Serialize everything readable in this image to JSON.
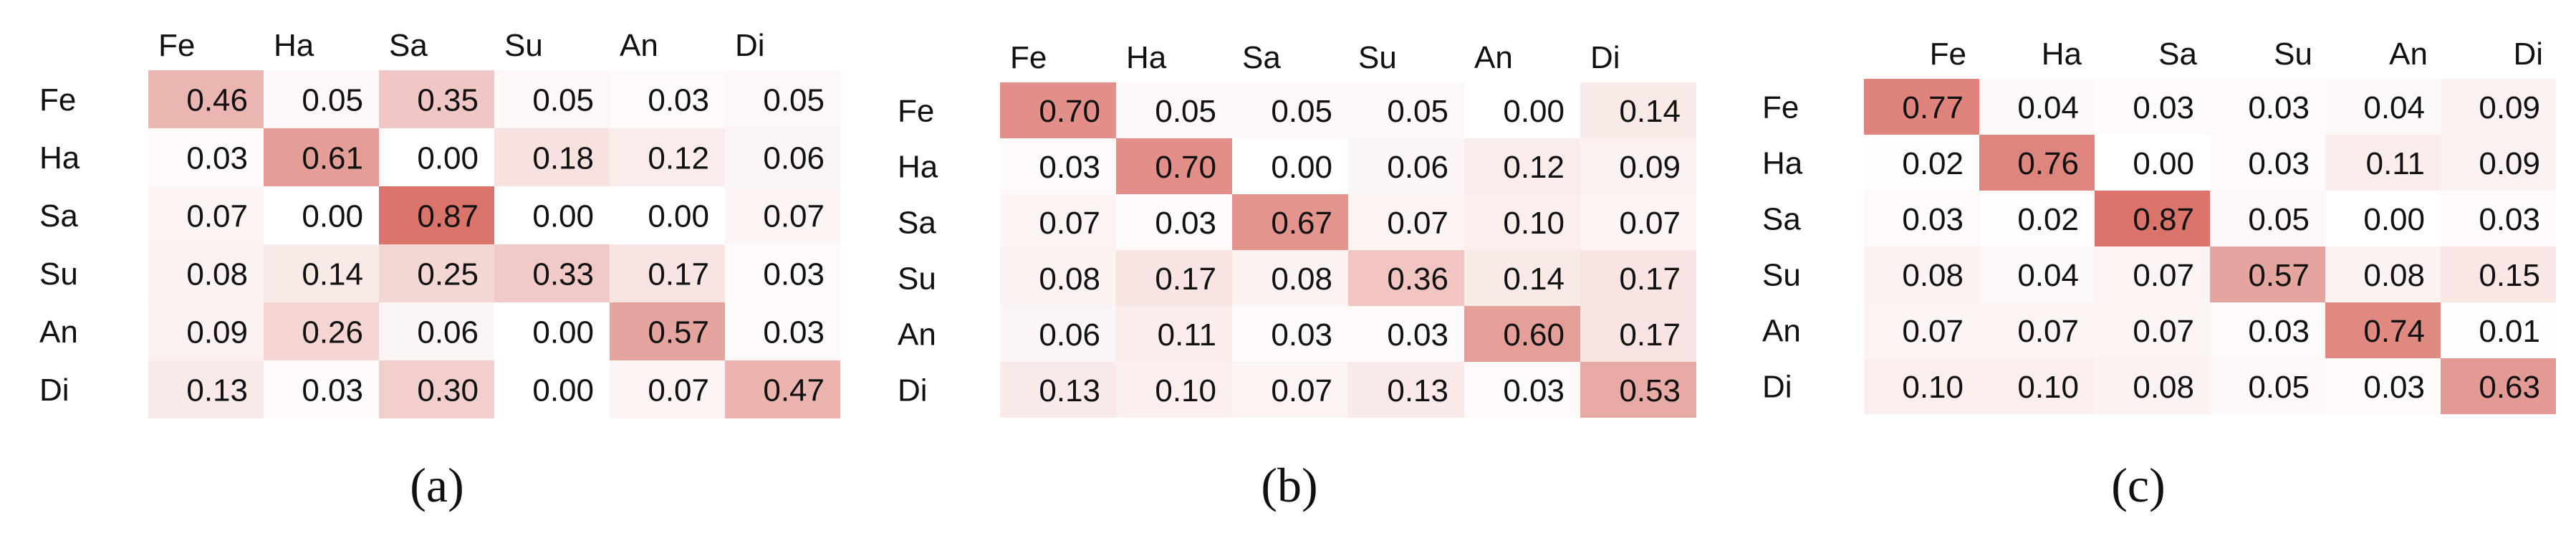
{
  "figure": {
    "panel_labels": [
      "(a)",
      "(b)",
      "(c)"
    ]
  },
  "colors": {
    "low": "#ffffff",
    "high": "#d45f55",
    "text": "#111111"
  },
  "chart_data": [
    {
      "type": "heatmap",
      "panel": "(a)",
      "x_categories": [
        "Fe",
        "Ha",
        "Sa",
        "Su",
        "An",
        "Di"
      ],
      "y_categories": [
        "Fe",
        "Ha",
        "Sa",
        "Su",
        "An",
        "Di"
      ],
      "values": [
        [
          0.46,
          0.05,
          0.35,
          0.05,
          0.03,
          0.05
        ],
        [
          0.03,
          0.61,
          0.0,
          0.18,
          0.12,
          0.06
        ],
        [
          0.07,
          0.0,
          0.87,
          0.0,
          0.0,
          0.07
        ],
        [
          0.08,
          0.14,
          0.25,
          0.33,
          0.17,
          0.03
        ],
        [
          0.09,
          0.26,
          0.06,
          0.0,
          0.57,
          0.03
        ],
        [
          0.13,
          0.03,
          0.3,
          0.0,
          0.07,
          0.47
        ]
      ],
      "value_labels": [
        [
          "0.46",
          "0.05",
          "0.35",
          "0.05",
          "0.03",
          "0.05"
        ],
        [
          "0.03",
          "0.61",
          "0.00",
          "0.18",
          "0.12",
          "0.06"
        ],
        [
          "0.07",
          "0.00",
          "0.87",
          "0.00",
          "0.00",
          "0.07"
        ],
        [
          "0.08",
          "0.14",
          "0.25",
          "0.33",
          "0.17",
          "0.03"
        ],
        [
          "0.09",
          "0.26",
          "0.06",
          "0.00",
          "0.57",
          "0.03"
        ],
        [
          "0.13",
          "0.03",
          "0.30",
          "0.00",
          "0.07",
          "0.47"
        ]
      ],
      "x_label_align": "left"
    },
    {
      "type": "heatmap",
      "panel": "(b)",
      "x_categories": [
        "Fe",
        "Ha",
        "Sa",
        "Su",
        "An",
        "Di"
      ],
      "y_categories": [
        "Fe",
        "Ha",
        "Sa",
        "Su",
        "An",
        "Di"
      ],
      "values": [
        [
          0.7,
          0.05,
          0.05,
          0.05,
          0.0,
          0.14
        ],
        [
          0.03,
          0.7,
          0.0,
          0.06,
          0.12,
          0.09
        ],
        [
          0.07,
          0.03,
          0.67,
          0.07,
          0.1,
          0.07
        ],
        [
          0.08,
          0.17,
          0.08,
          0.36,
          0.14,
          0.17
        ],
        [
          0.06,
          0.11,
          0.03,
          0.03,
          0.6,
          0.17
        ],
        [
          0.13,
          0.1,
          0.07,
          0.13,
          0.03,
          0.53
        ]
      ],
      "value_labels": [
        [
          "0.70",
          "0.05",
          "0.05",
          "0.05",
          "0.00",
          "0.14"
        ],
        [
          "0.03",
          "0.70",
          "0.00",
          "0.06",
          "0.12",
          "0.09"
        ],
        [
          "0.07",
          "0.03",
          "0.67",
          "0.07",
          "0.10",
          "0.07"
        ],
        [
          "0.08",
          "0.17",
          "0.08",
          "0.36",
          "0.14",
          "0.17"
        ],
        [
          "0.06",
          "0.11",
          "0.03",
          "0.03",
          "0.60",
          "0.17"
        ],
        [
          "0.13",
          "0.10",
          "0.07",
          "0.13",
          "0.03",
          "0.53"
        ]
      ],
      "x_label_align": "left"
    },
    {
      "type": "heatmap",
      "panel": "(c)",
      "x_categories": [
        "Fe",
        "Ha",
        "Sa",
        "Su",
        "An",
        "Di"
      ],
      "y_categories": [
        "Fe",
        "Ha",
        "Sa",
        "Su",
        "An",
        "Di"
      ],
      "values": [
        [
          0.77,
          0.04,
          0.03,
          0.03,
          0.04,
          0.09
        ],
        [
          0.02,
          0.76,
          0.0,
          0.03,
          0.11,
          0.09
        ],
        [
          0.03,
          0.02,
          0.87,
          0.05,
          0.0,
          0.03
        ],
        [
          0.08,
          0.04,
          0.07,
          0.57,
          0.08,
          0.15
        ],
        [
          0.07,
          0.07,
          0.07,
          0.03,
          0.74,
          0.01
        ],
        [
          0.1,
          0.1,
          0.08,
          0.05,
          0.03,
          0.63
        ]
      ],
      "value_labels": [
        [
          "0.77",
          "0.04",
          "0.03",
          "0.03",
          "0.04",
          "0.09"
        ],
        [
          "0.02",
          "0.76",
          "0.00",
          "0.03",
          "0.11",
          "0.09"
        ],
        [
          "0.03",
          "0.02",
          "0.87",
          "0.05",
          "0.00",
          "0.03"
        ],
        [
          "0.08",
          "0.04",
          "0.07",
          "0.57",
          "0.08",
          "0.15"
        ],
        [
          "0.07",
          "0.07",
          "0.07",
          "0.03",
          "0.74",
          "0.01"
        ],
        [
          "0.10",
          "0.10",
          "0.08",
          "0.05",
          "0.03",
          "0.63"
        ]
      ],
      "x_label_align": "right"
    }
  ]
}
